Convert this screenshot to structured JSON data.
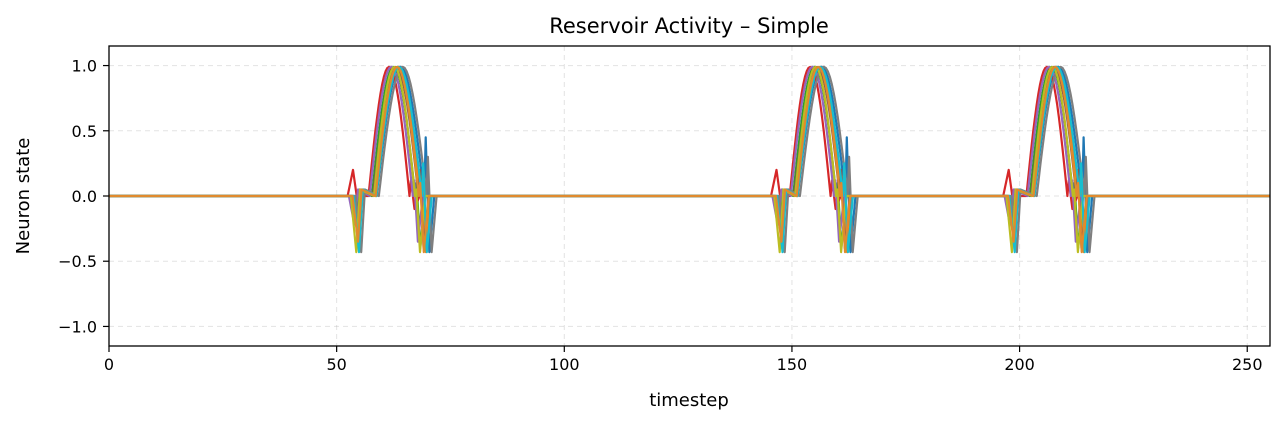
{
  "chart_data": {
    "type": "line",
    "title": "Reservoir Activity – Simple",
    "xlabel": "timestep",
    "ylabel": "Neuron state",
    "xlim": [
      0,
      255
    ],
    "ylim": [
      -1.15,
      1.15
    ],
    "xticks": [
      0,
      50,
      100,
      150,
      200,
      250
    ],
    "xtick_labels": [
      "0",
      "50",
      "100",
      "150",
      "200",
      "250"
    ],
    "yticks": [
      1.0,
      0.5,
      0.0,
      -0.5,
      -1.0
    ],
    "ytick_labels": [
      "1.0",
      "0.5",
      "0.0",
      "−0.5",
      "−1.0"
    ],
    "grid": true,
    "legend": "none",
    "pulse_windows": [
      [
        53,
        72
      ],
      [
        146,
        164
      ],
      [
        197,
        217
      ]
    ],
    "series": [
      {
        "color": "#1f77b4",
        "offset": 1.5,
        "width": 11.5,
        "pre_dip": -0.2,
        "post_dip": -0.43,
        "tail": 0.45
      },
      {
        "color": "#ff7f0e",
        "offset": 1.0,
        "width": 11.0,
        "pre_dip": -0.25,
        "post_dip": -0.43,
        "tail": 0.15
      },
      {
        "color": "#2ca02c",
        "offset": 0.0,
        "width": 10.5,
        "pre_dip": -0.18,
        "post_dip": -0.4,
        "tail": 0.1
      },
      {
        "color": "#d62728",
        "offset": -1.0,
        "width": 10.0,
        "pre_dip": 0.2,
        "post_dip": -0.1,
        "tail": 0.12
      },
      {
        "color": "#9467bd",
        "offset": -0.5,
        "width": 10.5,
        "pre_dip": -0.22,
        "post_dip": -0.35,
        "tail": 0.12
      },
      {
        "color": "#8c564b",
        "offset": 0.5,
        "width": 11.0,
        "pre_dip": -0.2,
        "post_dip": -0.4,
        "tail": 0.2
      },
      {
        "color": "#7f7f7f",
        "offset": 2.0,
        "width": 11.5,
        "pre_dip": -0.43,
        "post_dip": -0.43,
        "tail": 0.3
      },
      {
        "color": "#bcbd22",
        "offset": 0.2,
        "width": 10.0,
        "pre_dip": -0.43,
        "post_dip": -0.43,
        "tail": 0.05
      },
      {
        "color": "#17becf",
        "offset": 1.2,
        "width": 11.0,
        "pre_dip": -0.43,
        "post_dip": -0.43,
        "tail": 0.25
      },
      {
        "color": "#e08a2e",
        "offset": 0.8,
        "width": 10.5,
        "pre_dip": -0.35,
        "post_dip": -0.43,
        "tail": 0.1
      }
    ],
    "x_start": 0,
    "x_end": 255
  }
}
